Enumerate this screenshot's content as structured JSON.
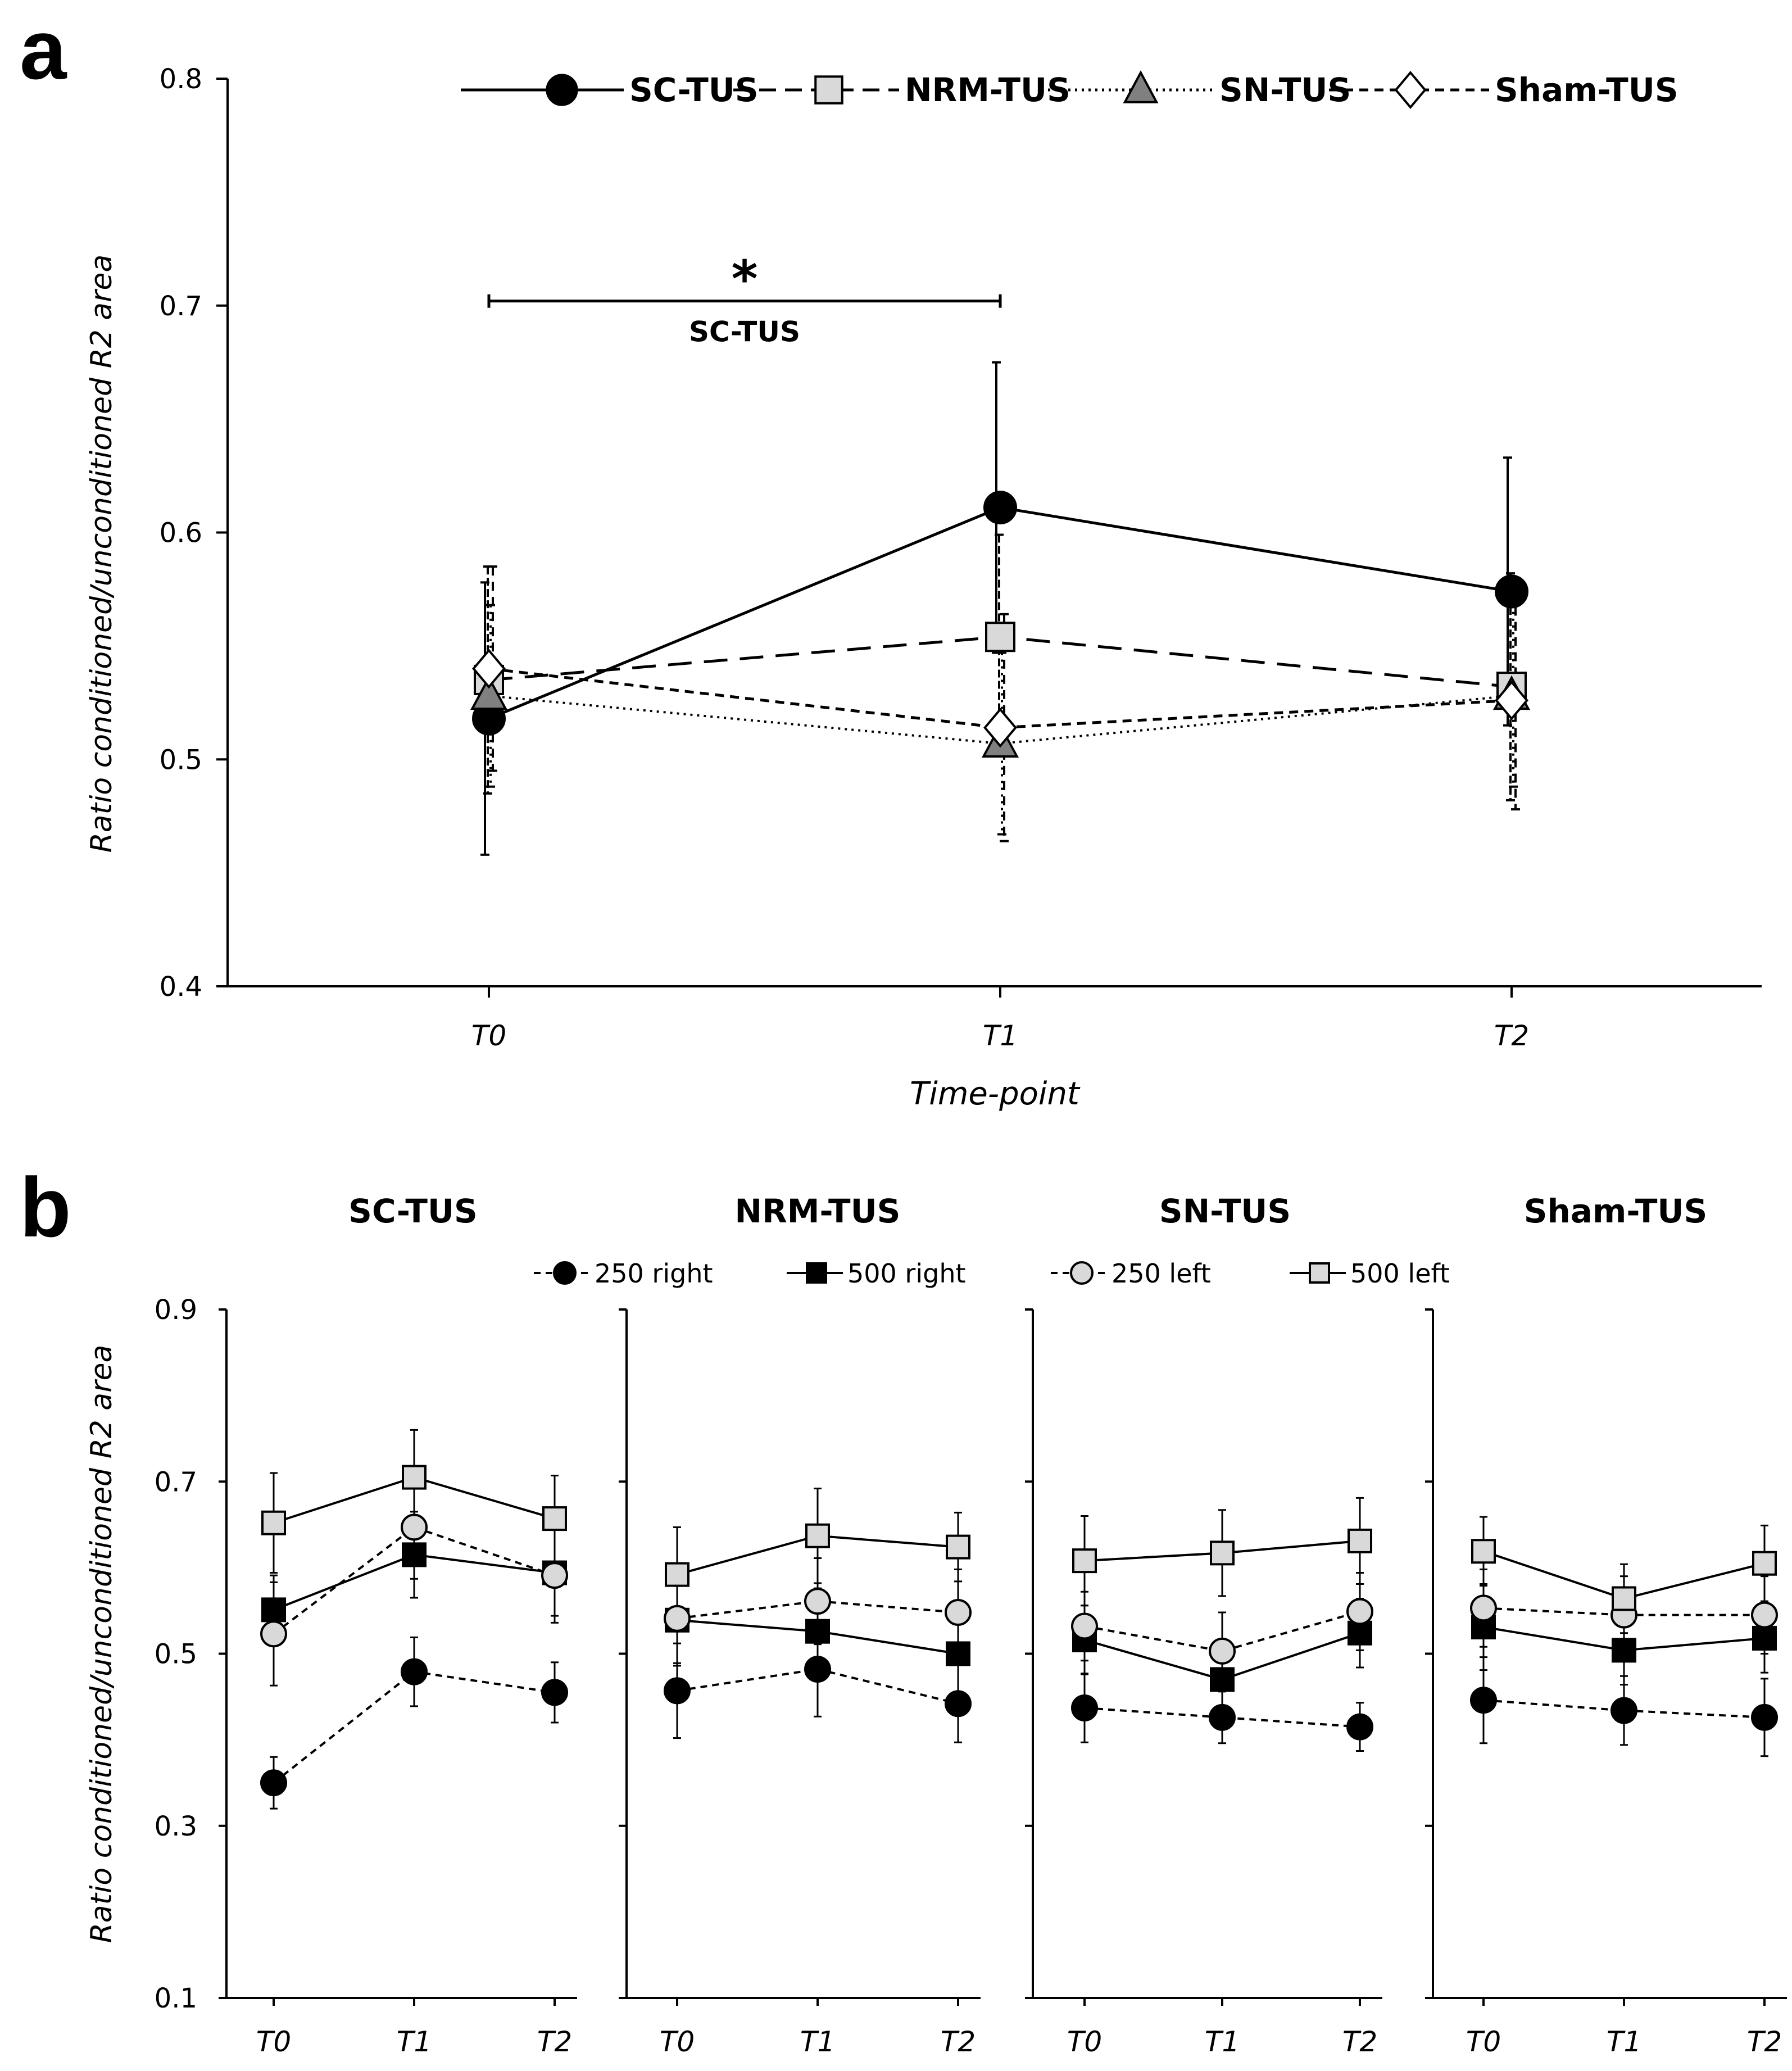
{
  "chart_data": [
    {
      "panel": "a",
      "type": "line",
      "title": "",
      "xlabel": "Time-point",
      "ylabel": "Ratio conditioned/unconditioned R2 area",
      "categories": [
        "T0",
        "T1",
        "T2"
      ],
      "ylim": [
        0.4,
        0.8
      ],
      "yticks": [
        "0.4",
        "0.5",
        "0.6",
        "0.7",
        "0.8"
      ],
      "grid": false,
      "legend_position": "top",
      "series": [
        {
          "name": "SC-TUS",
          "values": [
            0.518,
            0.611,
            0.574
          ],
          "errors": [
            0.06,
            0.064,
            0.059
          ],
          "marker": "circle",
          "fill": "#000000",
          "dash": "solid"
        },
        {
          "name": "NRM-TUS",
          "values": [
            0.535,
            0.554,
            0.532
          ],
          "errors": [
            0.05,
            0.045,
            0.05
          ],
          "marker": "square",
          "fill": "#d9d9d9",
          "dash": "longdash"
        },
        {
          "name": "SN-TUS",
          "values": [
            0.528,
            0.507,
            0.528
          ],
          "errors": [
            0.04,
            0.04,
            0.04
          ],
          "marker": "triangle",
          "fill": "#808080",
          "dash": "dotted"
        },
        {
          "name": "Sham-TUS",
          "values": [
            0.54,
            0.514,
            0.526
          ],
          "errors": [
            0.045,
            0.05,
            0.048
          ],
          "marker": "diamond",
          "fill": "#ffffff",
          "dash": "dashed"
        }
      ],
      "annotation": {
        "symbol": "*",
        "label": "SC-TUS",
        "from": "T0",
        "to": "T1",
        "y": 0.702
      }
    },
    {
      "panel": "b",
      "type": "line",
      "ylabel": "Ratio conditioned/unconditioned R2 area",
      "categories": [
        "T0",
        "T1",
        "T2"
      ],
      "ylim": [
        0.1,
        0.9
      ],
      "yticks": [
        "0.1",
        "0.3",
        "0.5",
        "0.7",
        "0.9"
      ],
      "grid": false,
      "legend_position": "top",
      "legend": [
        {
          "name": "250 right",
          "marker": "circle",
          "fill": "#000000",
          "dash": "dashed"
        },
        {
          "name": "500 right",
          "marker": "square",
          "fill": "#000000",
          "dash": "solid"
        },
        {
          "name": "250 left",
          "marker": "circle",
          "fill": "#d9d9d9",
          "dash": "dashed"
        },
        {
          "name": "500 left",
          "marker": "square",
          "fill": "#d9d9d9",
          "dash": "solid"
        }
      ],
      "subplots": [
        {
          "title": "SC-TUS",
          "series": [
            {
              "name": "250 right",
              "values": [
                0.35,
                0.479,
                0.455
              ],
              "errors": [
                0.03,
                0.04,
                0.035
              ]
            },
            {
              "name": "500 right",
              "values": [
                0.551,
                0.615,
                0.594
              ],
              "errors": [
                0.04,
                0.05,
                0.05
              ]
            },
            {
              "name": "250 left",
              "values": [
                0.523,
                0.647,
                0.591
              ],
              "errors": [
                0.06,
                0.06,
                0.055
              ]
            },
            {
              "name": "500 left",
              "values": [
                0.652,
                0.705,
                0.657
              ],
              "errors": [
                0.058,
                0.055,
                0.05
              ]
            }
          ]
        },
        {
          "title": "NRM-TUS",
          "series": [
            {
              "name": "250 right",
              "values": [
                0.457,
                0.482,
                0.442
              ],
              "errors": [
                0.055,
                0.055,
                0.045
              ]
            },
            {
              "name": "500 right",
              "values": [
                0.539,
                0.526,
                0.5
              ],
              "errors": [
                0.05,
                0.05,
                0.045
              ]
            },
            {
              "name": "250 left",
              "values": [
                0.541,
                0.561,
                0.548
              ],
              "errors": [
                0.055,
                0.05,
                0.05
              ]
            },
            {
              "name": "500 left",
              "values": [
                0.592,
                0.637,
                0.624
              ],
              "errors": [
                0.055,
                0.055,
                0.04
              ]
            }
          ]
        },
        {
          "title": "SN-TUS",
          "series": [
            {
              "name": "250 right",
              "values": [
                0.437,
                0.426,
                0.415
              ],
              "errors": [
                0.04,
                0.03,
                0.028
              ]
            },
            {
              "name": "500 right",
              "values": [
                0.516,
                0.47,
                0.524
              ],
              "errors": [
                0.04,
                0.04,
                0.04
              ]
            },
            {
              "name": "250 left",
              "values": [
                0.532,
                0.503,
                0.549
              ],
              "errors": [
                0.04,
                0.045,
                0.045
              ]
            },
            {
              "name": "500 left",
              "values": [
                0.608,
                0.617,
                0.631
              ],
              "errors": [
                0.052,
                0.05,
                0.05
              ]
            }
          ]
        },
        {
          "title": "Sham-TUS",
          "series": [
            {
              "name": "250 right",
              "values": [
                0.446,
                0.434,
                0.426
              ],
              "errors": [
                0.05,
                0.04,
                0.045
              ]
            },
            {
              "name": "500 right",
              "values": [
                0.531,
                0.504,
                0.518
              ],
              "errors": [
                0.05,
                0.04,
                0.04
              ]
            },
            {
              "name": "250 left",
              "values": [
                0.553,
                0.545,
                0.545
              ],
              "errors": [
                0.045,
                0.045,
                0.045
              ]
            },
            {
              "name": "500 left",
              "values": [
                0.619,
                0.564,
                0.605
              ],
              "errors": [
                0.04,
                0.04,
                0.044
              ]
            }
          ]
        }
      ]
    }
  ],
  "labels": {
    "panel_a": "a",
    "panel_b": "b"
  }
}
